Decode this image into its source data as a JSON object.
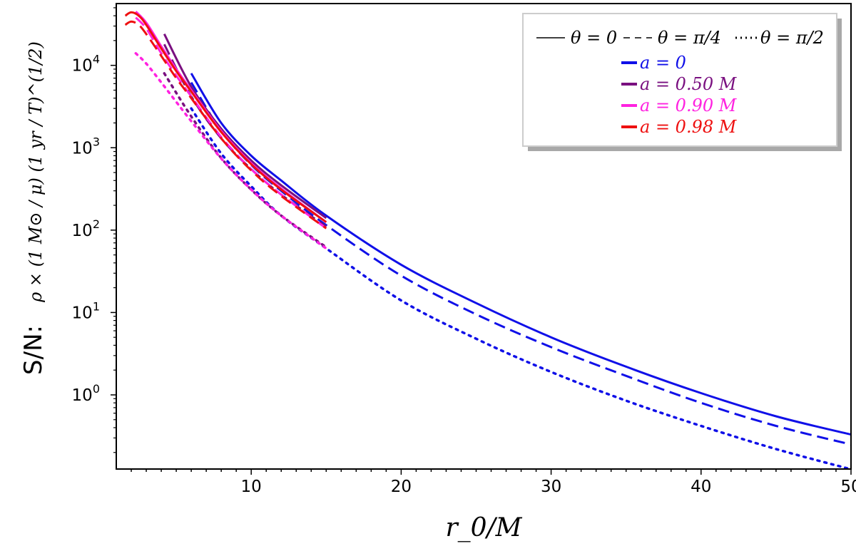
{
  "chart_data": {
    "type": "line",
    "xlabel": "r_0/M",
    "ylabel_prefix": "S/N:",
    "ylabel_formula": "ρ × (1 M⊙ / μ) (1 yr / T)^(1/2)",
    "y_scale": "log",
    "xlim": [
      1,
      50
    ],
    "ylim_log10": [
      -0.9,
      4.75
    ],
    "x_ticks": [
      {
        "value": 10,
        "label": "10"
      },
      {
        "value": 20,
        "label": "20"
      },
      {
        "value": 30,
        "label": "30"
      },
      {
        "value": 40,
        "label": "40"
      },
      {
        "value": 50,
        "label": "50"
      }
    ],
    "y_ticks": [
      {
        "exp": 0,
        "base": "10",
        "sup": "0"
      },
      {
        "exp": 1,
        "base": "10",
        "sup": "1"
      },
      {
        "exp": 2,
        "base": "10",
        "sup": "2"
      },
      {
        "exp": 3,
        "base": "10",
        "sup": "3"
      },
      {
        "exp": 4,
        "base": "10",
        "sup": "4"
      }
    ],
    "legend": {
      "location": "upper right",
      "styles": [
        {
          "label": "θ = 0",
          "linestyle": "solid"
        },
        {
          "label": "θ = π/4",
          "linestyle": "dashed"
        },
        {
          "label": "θ = π/2",
          "linestyle": "dotted"
        }
      ],
      "spins": [
        {
          "label": "a = 0",
          "color": "#1010e8"
        },
        {
          "label": "a = 0.50 M",
          "color": "#7a1080"
        },
        {
          "label": "a = 0.90 M",
          "color": "#ff22e0"
        },
        {
          "label": "a = 0.98 M",
          "color": "#ee1010"
        }
      ]
    },
    "series": [
      {
        "name": "a=0, θ=0",
        "color": "#1010e8",
        "style": "solid",
        "x": [
          6,
          8,
          10,
          12,
          15,
          20,
          25,
          30,
          35,
          40,
          45,
          50
        ],
        "y": [
          8000,
          2000,
          800,
          400,
          150,
          38,
          13,
          5,
          2.2,
          1.05,
          0.55,
          0.33
        ]
      },
      {
        "name": "a=0, θ=π/4",
        "color": "#1010e8",
        "style": "dashed",
        "x": [
          6,
          8,
          10,
          12,
          15,
          20,
          25,
          30,
          35,
          40,
          45,
          50
        ],
        "y": [
          6200,
          1600,
          620,
          300,
          115,
          28,
          9.5,
          3.8,
          1.7,
          0.8,
          0.42,
          0.25
        ]
      },
      {
        "name": "a=0, θ=π/2",
        "color": "#1010e8",
        "style": "dotted",
        "x": [
          6,
          8,
          10,
          12,
          15,
          20,
          25,
          30,
          35,
          40,
          45,
          50
        ],
        "y": [
          3000,
          850,
          340,
          150,
          60,
          14,
          4.8,
          1.9,
          0.85,
          0.42,
          0.22,
          0.125
        ]
      },
      {
        "name": "a=0.50M, θ=0",
        "color": "#7a1080",
        "style": "solid",
        "x": [
          4.2,
          6,
          8,
          10,
          12,
          15
        ],
        "y": [
          24000,
          5500,
          1700,
          700,
          350,
          140
        ]
      },
      {
        "name": "a=0.50M, θ=π/4",
        "color": "#7a1080",
        "style": "dashed",
        "x": [
          4.2,
          6,
          8,
          10,
          12,
          15
        ],
        "y": [
          18000,
          4200,
          1300,
          550,
          270,
          110
        ]
      },
      {
        "name": "a=0.50M, θ=π/2",
        "color": "#7a1080",
        "style": "dotted",
        "x": [
          4.2,
          6,
          8,
          10,
          12,
          15
        ],
        "y": [
          8000,
          2400,
          750,
          310,
          150,
          62
        ]
      },
      {
        "name": "a=0.90M, θ=0",
        "color": "#ff22e0",
        "style": "solid",
        "x": [
          2.3,
          3,
          4,
          5,
          6,
          8,
          10,
          12,
          15
        ],
        "y": [
          45000,
          33000,
          17000,
          9000,
          5000,
          1600,
          650,
          320,
          125
        ]
      },
      {
        "name": "a=0.90M, θ=π/4",
        "color": "#ff22e0",
        "style": "dashed",
        "x": [
          2.3,
          3,
          4,
          5,
          6,
          8,
          10,
          12,
          15
        ],
        "y": [
          38000,
          28000,
          14000,
          7500,
          4200,
          1350,
          550,
          270,
          105
        ]
      },
      {
        "name": "a=0.90M, θ=π/2",
        "color": "#ff22e0",
        "style": "dotted",
        "x": [
          2.3,
          3,
          4,
          5,
          6,
          8,
          10,
          12,
          15
        ],
        "y": [
          14000,
          10500,
          6200,
          3600,
          2100,
          740,
          310,
          150,
          60
        ]
      },
      {
        "name": "a=0.98M, θ=0",
        "color": "#ee1010",
        "style": "solid",
        "x": [
          1.6,
          2,
          2.5,
          3,
          4,
          5,
          6,
          8,
          10,
          12,
          15
        ],
        "y": [
          40000,
          44000,
          40000,
          31000,
          16000,
          8500,
          4800,
          1550,
          630,
          310,
          125
        ]
      },
      {
        "name": "a=0.98M, θ=π/4",
        "color": "#ee1010",
        "style": "dashed",
        "x": [
          1.6,
          2,
          2.5,
          3,
          4,
          5,
          6,
          8,
          10,
          12,
          15
        ],
        "y": [
          31000,
          34000,
          31000,
          24000,
          13000,
          7000,
          4000,
          1300,
          530,
          260,
          105
        ]
      }
    ]
  }
}
